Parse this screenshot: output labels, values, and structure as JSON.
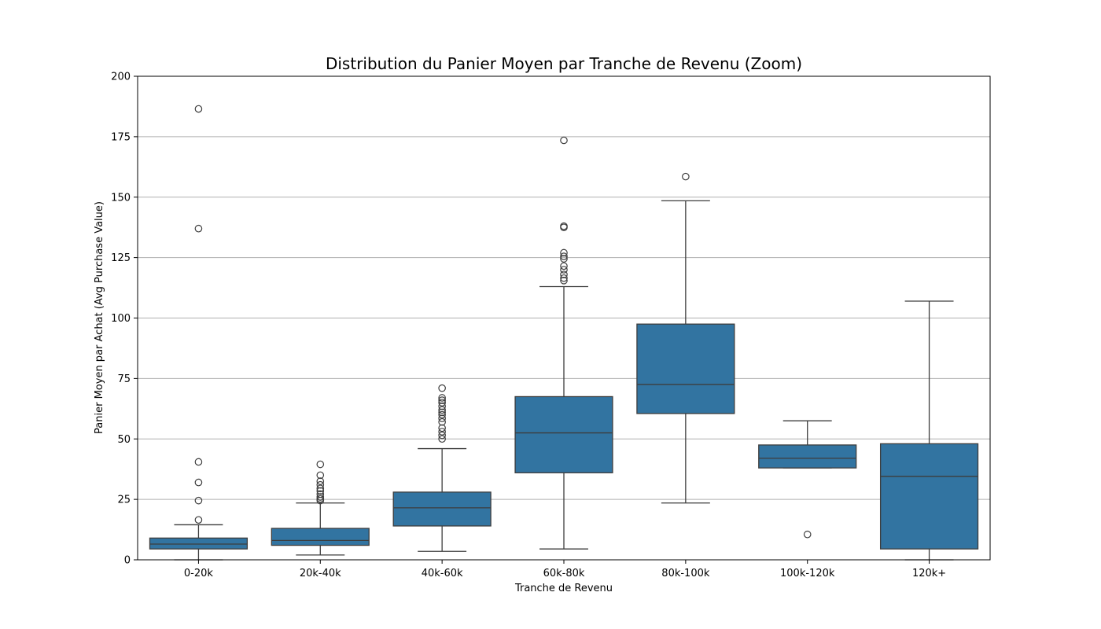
{
  "chart_data": {
    "type": "box",
    "title": "Distribution du Panier Moyen par Tranche de Revenu (Zoom)",
    "xlabel": "Tranche de Revenu",
    "ylabel": "Panier Moyen par Achat (Avg Purchase Value)",
    "ylim": [
      0,
      200
    ],
    "yticks": [
      0,
      25,
      50,
      75,
      100,
      125,
      150,
      175,
      200
    ],
    "grid": "horizontal",
    "colors": {
      "box_fill": "#3274a1",
      "line": "#3d3d3d",
      "grid": "#b0b0b0",
      "outlier_stroke": "#3d3d3d"
    },
    "categories": [
      "0-20k",
      "20k-40k",
      "40k-60k",
      "60k-80k",
      "80k-100k",
      "100k-120k",
      "120k+"
    ],
    "boxes": [
      {
        "category": "0-20k",
        "whisker_low": 0,
        "q1": 4.5,
        "median": 6.5,
        "q3": 9,
        "whisker_high": 14.5,
        "outliers": [
          16.5,
          24.5,
          32,
          40.5,
          137,
          186.5
        ]
      },
      {
        "category": "20k-40k",
        "whisker_low": 2,
        "q1": 6,
        "median": 8,
        "q3": 13,
        "whisker_high": 23.5,
        "outliers": [
          24.5,
          25.2,
          26,
          27.2,
          28.5,
          29.5,
          31,
          32.5,
          35,
          39.5
        ]
      },
      {
        "category": "40k-60k",
        "whisker_low": 3.5,
        "q1": 14,
        "median": 21.5,
        "q3": 28,
        "whisker_high": 46,
        "outliers": [
          50,
          51.5,
          53,
          54.5,
          57,
          58.5,
          60,
          61,
          62,
          63.5,
          65,
          66,
          67,
          71
        ]
      },
      {
        "category": "60k-80k",
        "whisker_low": 4.5,
        "q1": 36,
        "median": 52.5,
        "q3": 67.5,
        "whisker_high": 113,
        "outliers": [
          115.5,
          116.5,
          118,
          120,
          121.5,
          124.5,
          125.5,
          127,
          137.5,
          138,
          173.5
        ]
      },
      {
        "category": "80k-100k",
        "whisker_low": 23.5,
        "q1": 60.5,
        "median": 72.5,
        "q3": 97.5,
        "whisker_high": 148.5,
        "outliers": [
          158.5
        ]
      },
      {
        "category": "100k-120k",
        "whisker_low": 38,
        "q1": 38,
        "median": 42,
        "q3": 47.5,
        "whisker_high": 57.5,
        "outliers": [
          10.5
        ]
      },
      {
        "category": "120k+",
        "whisker_low": 0,
        "q1": 4.5,
        "median": 34.5,
        "q3": 48,
        "whisker_high": 107,
        "outliers": []
      }
    ]
  }
}
